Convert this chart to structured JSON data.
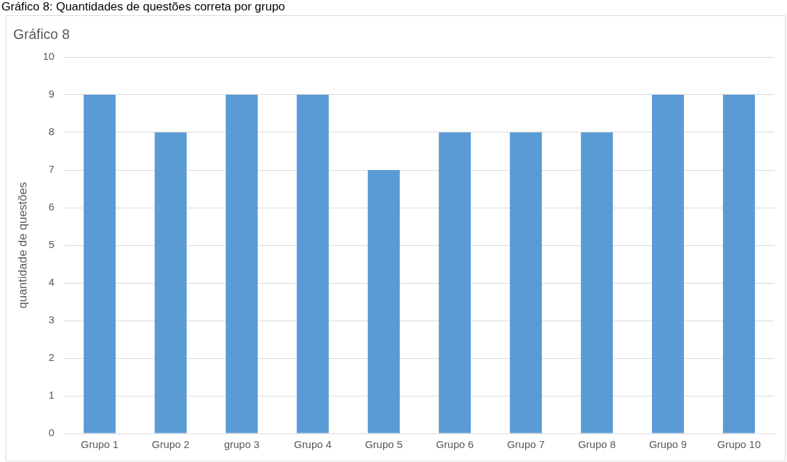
{
  "chart_data": {
    "type": "bar",
    "title": "Gráfico 8",
    "ylabel": "quantidade de questões",
    "annotations": [
      "Gráfico 8: Quantidades de questões correta por grupo"
    ],
    "categories": [
      "Grupo 1",
      "Grupo 2",
      "grupo 3",
      "Grupo 4",
      "Grupo 5",
      "Grupo 6",
      "Grupo 7",
      "Grupo 8",
      "Grupo 9",
      "Grupo 10"
    ],
    "values": [
      9,
      8,
      9,
      9,
      7,
      8,
      8,
      8,
      9,
      9
    ],
    "color": "#5b9bd5",
    "ylim": [
      0,
      10
    ],
    "yticks": [
      0,
      1,
      2,
      3,
      4,
      5,
      6,
      7,
      8,
      9,
      10
    ],
    "grid": "y",
    "legend": false
  }
}
